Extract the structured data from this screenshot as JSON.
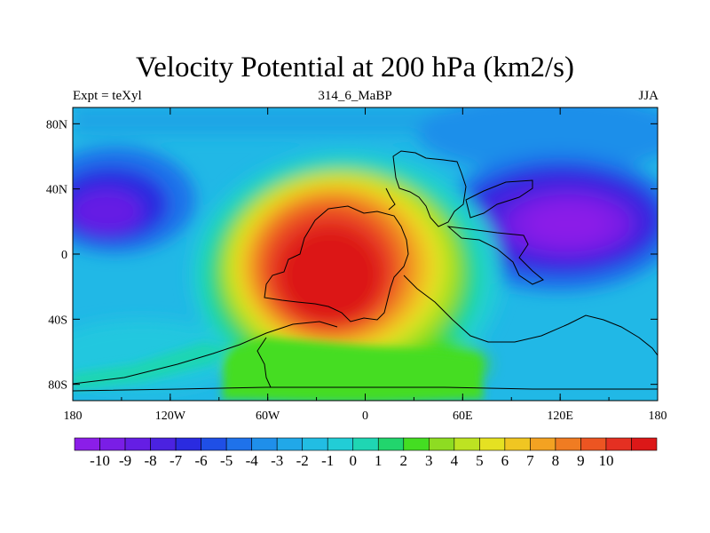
{
  "title": "Velocity Potential at 200 hPa (km2/s)",
  "subtitle_left": "Expt = teXyl",
  "subtitle_center": "314_6_MaBP",
  "subtitle_right": "JJA",
  "x_ticks": [
    {
      "lon": -180,
      "label": "180"
    },
    {
      "lon": -120,
      "label": "120W"
    },
    {
      "lon": -60,
      "label": "60W"
    },
    {
      "lon": 0,
      "label": "0"
    },
    {
      "lon": 60,
      "label": "60E"
    },
    {
      "lon": 120,
      "label": "120E"
    },
    {
      "lon": 180,
      "label": "180"
    }
  ],
  "y_ticks": [
    {
      "lat": 80,
      "label": "80N"
    },
    {
      "lat": 40,
      "label": "40N"
    },
    {
      "lat": 0,
      "label": "0"
    },
    {
      "lat": -40,
      "label": "40S"
    },
    {
      "lat": -80,
      "label": "80S"
    }
  ],
  "colorbar": {
    "labels": [
      "-10",
      "-9",
      "-8",
      "-7",
      "-6",
      "-5",
      "-4",
      "-3",
      "-2",
      "-1",
      "0",
      "1",
      "2",
      "3",
      "4",
      "5",
      "6",
      "7",
      "8",
      "9",
      "10"
    ],
    "colors": [
      "#8b1ee8",
      "#7a1ee6",
      "#651ee4",
      "#4b22e0",
      "#2a2be0",
      "#1f4fe6",
      "#1f72ea",
      "#1f8fea",
      "#21a8e8",
      "#22bde3",
      "#22cdd6",
      "#1fd6b3",
      "#22d56d",
      "#44dd22",
      "#8edc22",
      "#bde322",
      "#e5e122",
      "#f0c622",
      "#f3a222",
      "#f07c22",
      "#ec5522",
      "#e43022",
      "#dc1818"
    ]
  },
  "map_data": {
    "type": "filled_contour_map",
    "projection": "equirectangular",
    "lon_range": [
      -180,
      180
    ],
    "lat_range": [
      -90,
      90
    ],
    "contour_levels": [
      -10,
      -9,
      -8,
      -7,
      -6,
      -5,
      -4,
      -3,
      -2,
      -1,
      0,
      1,
      2,
      3,
      4,
      5,
      6,
      7,
      8,
      9,
      10
    ],
    "features": [
      {
        "name": "upper-level divergence maximum",
        "center_lon": -15,
        "center_lat": -20,
        "value": 10
      },
      {
        "name": "convergence minimum east",
        "center_lon": 115,
        "center_lat": 5,
        "value": -10
      },
      {
        "name": "convergence minimum west",
        "center_lon": -165,
        "center_lat": 25,
        "value": -7
      }
    ]
  }
}
